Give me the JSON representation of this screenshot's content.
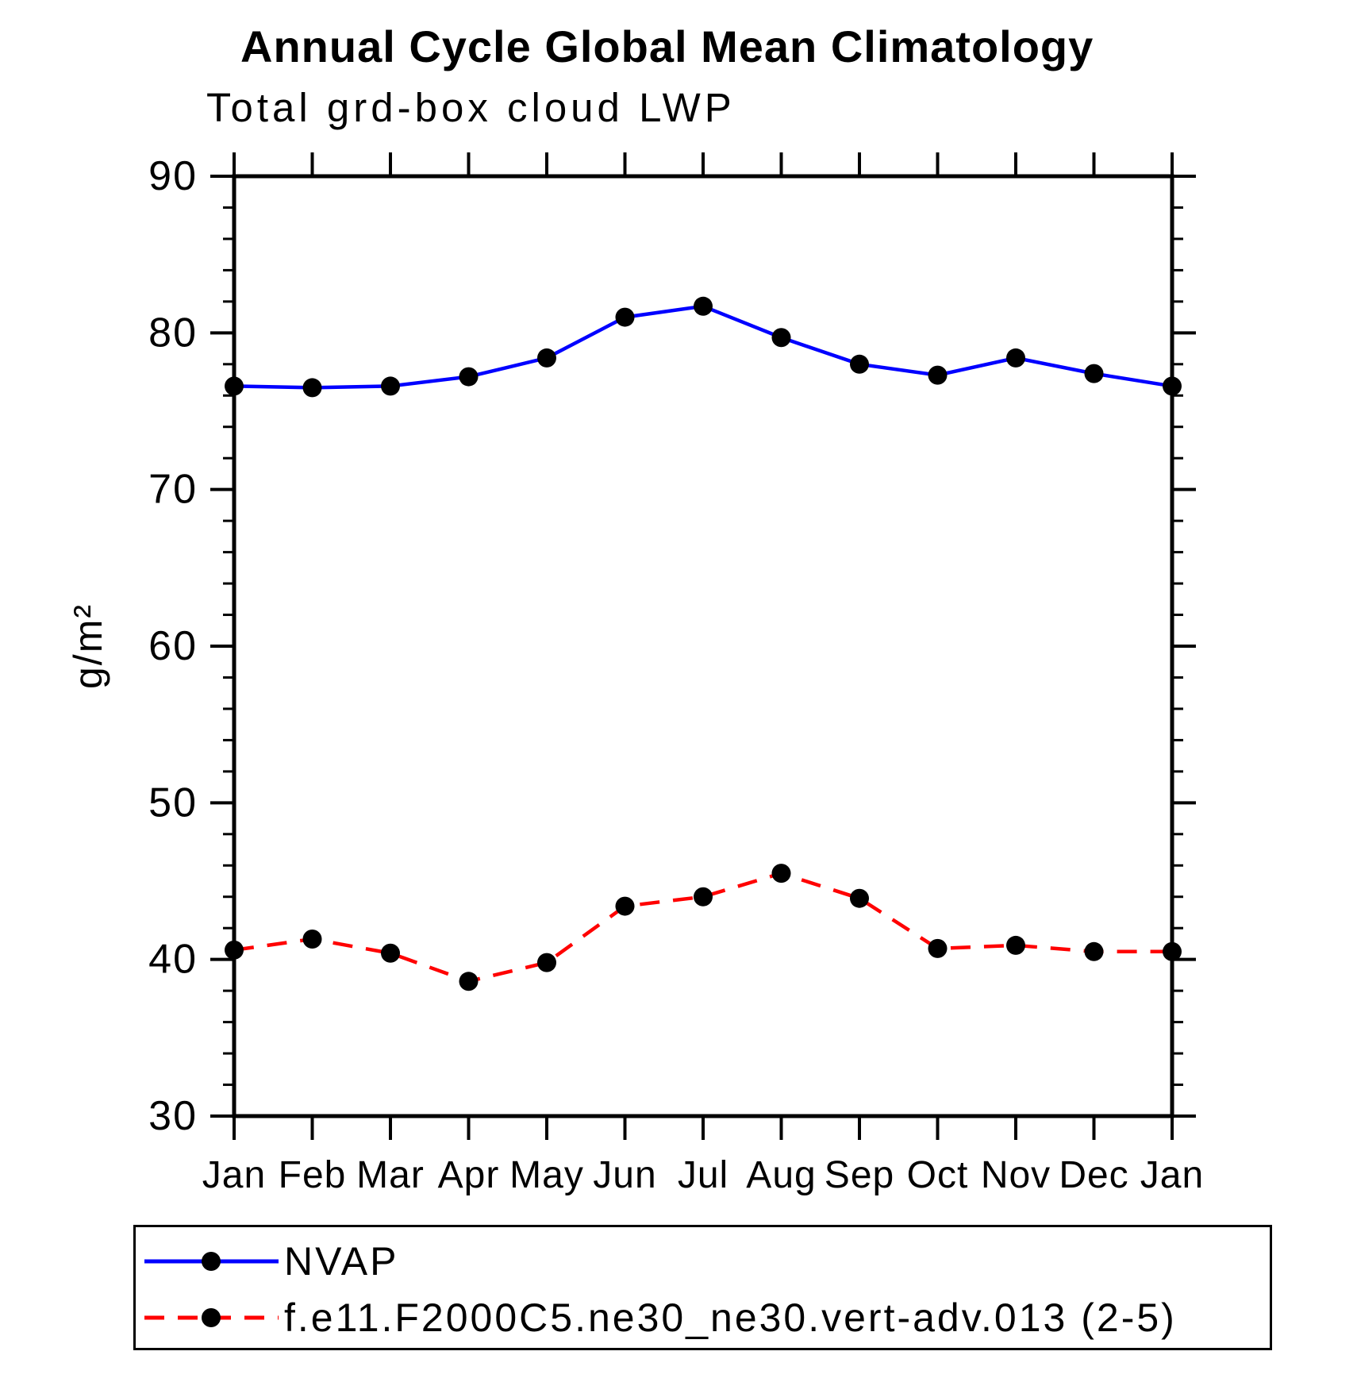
{
  "page": {
    "background": "#ffffff",
    "text_color": "#000000"
  },
  "chart_data": {
    "type": "line",
    "title": "Annual Cycle Global Mean Climatology",
    "subtitle": "Total grd-box cloud LWP",
    "ylabel": "g/m²",
    "xlabel": "",
    "categories": [
      "Jan",
      "Feb",
      "Mar",
      "Apr",
      "May",
      "Jun",
      "Jul",
      "Aug",
      "Sep",
      "Oct",
      "Nov",
      "Dec",
      "Jan"
    ],
    "ylim": [
      30,
      90
    ],
    "yticks": [
      90,
      80,
      70,
      60,
      50,
      40,
      30
    ],
    "ytick_minor_step": 2,
    "grid": false,
    "axis_color": "#000000",
    "marker_color": "#000000",
    "legend_position": "bottom",
    "series": [
      {
        "name": "NVAP",
        "color": "#0000ff",
        "line_style": "solid",
        "marker": "filled-circle",
        "values": [
          76.6,
          76.5,
          76.6,
          77.2,
          78.4,
          81.0,
          81.7,
          79.7,
          78.0,
          77.3,
          78.4,
          77.4,
          76.6
        ]
      },
      {
        "name": "f.e11.F2000C5.ne30_ne30.vert-adv.013 (2-5)",
        "color": "#ff0000",
        "line_style": "dashed",
        "marker": "filled-circle",
        "values": [
          40.6,
          41.3,
          40.4,
          38.6,
          39.8,
          43.4,
          44.0,
          45.5,
          43.9,
          40.7,
          40.9,
          40.5,
          40.5
        ]
      }
    ]
  }
}
